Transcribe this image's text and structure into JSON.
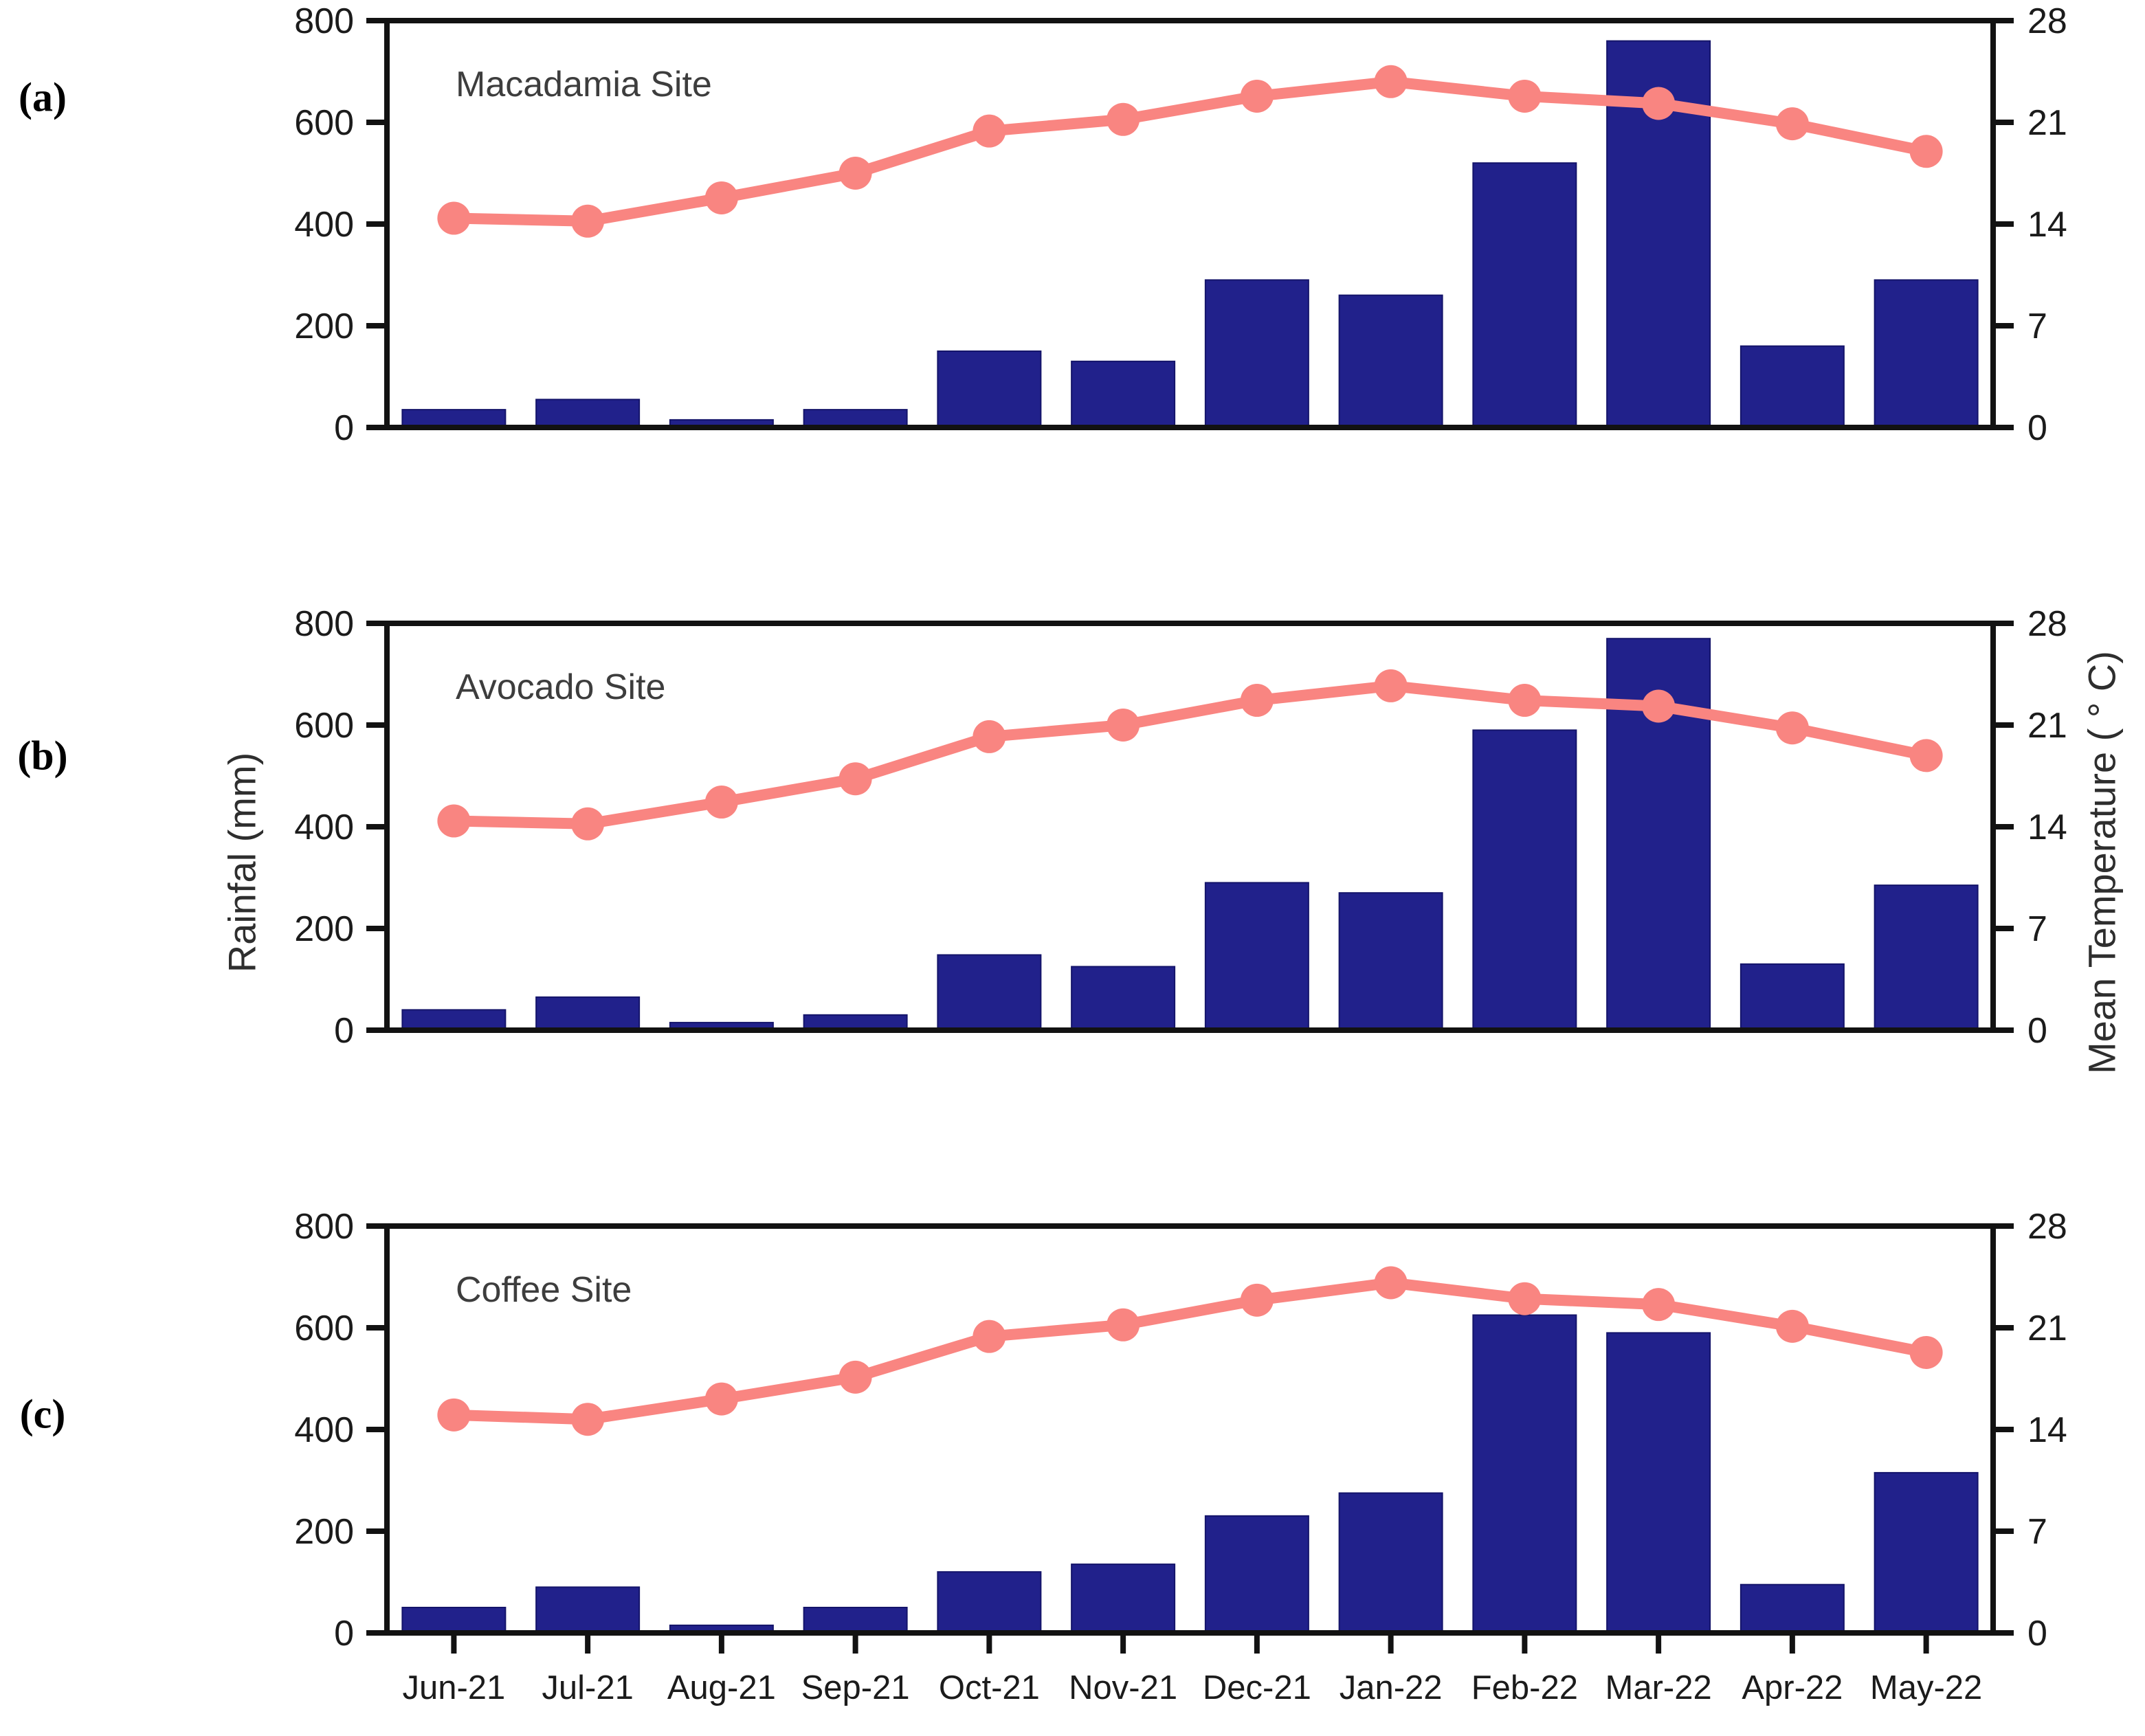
{
  "figure": {
    "left_axis_title": "Rainfal (mm)",
    "right_axis_title": "Mean Temperature ( ° C)",
    "left_axis_ticks": [
      0,
      200,
      400,
      600,
      800
    ],
    "right_axis_ticks": [
      0,
      7,
      14,
      21,
      28
    ],
    "colors": {
      "bar": "#21218B",
      "bar_edge": "#14146a",
      "line": "#F98581",
      "axis": "#121212",
      "site_label": "#3d3d3d"
    }
  },
  "chart_data": [
    {
      "type": "bar+line",
      "panel_label": "(a)",
      "title": "Macadamia Site",
      "categories": [
        "Jun-21",
        "Jul-21",
        "Aug-21",
        "Sep-21",
        "Oct-21",
        "Nov-21",
        "Dec-21",
        "Jan-22",
        "Feb-22",
        "Mar-22",
        "Apr-22",
        "May-22"
      ],
      "ylim_left": [
        0,
        800
      ],
      "ylim_right": [
        0,
        28
      ],
      "legend_position": "none",
      "series": [
        {
          "name": "Rainfall",
          "type": "bar",
          "axis": "left",
          "unit": "mm",
          "values": [
            35,
            55,
            15,
            35,
            150,
            130,
            290,
            260,
            520,
            760,
            160,
            290
          ]
        },
        {
          "name": "Mean Temperature",
          "type": "line",
          "axis": "right",
          "unit": "°C",
          "values": [
            14.4,
            14.2,
            15.8,
            17.5,
            20.4,
            21.2,
            22.8,
            23.8,
            22.8,
            22.3,
            20.9,
            19.0
          ]
        }
      ]
    },
    {
      "type": "bar+line",
      "panel_label": "(b)",
      "title": "Avocado Site",
      "categories": [
        "Jun-21",
        "Jul-21",
        "Aug-21",
        "Sep-21",
        "Oct-21",
        "Nov-21",
        "Dec-21",
        "Jan-22",
        "Feb-22",
        "Mar-22",
        "Apr-22",
        "May-22"
      ],
      "ylim_left": [
        0,
        800
      ],
      "ylim_right": [
        0,
        28
      ],
      "legend_position": "none",
      "series": [
        {
          "name": "Rainfall",
          "type": "bar",
          "axis": "left",
          "unit": "mm",
          "values": [
            40,
            65,
            15,
            30,
            148,
            125,
            290,
            270,
            590,
            770,
            130,
            285
          ]
        },
        {
          "name": "Mean Temperature",
          "type": "line",
          "axis": "right",
          "unit": "°C",
          "values": [
            14.4,
            14.2,
            15.7,
            17.3,
            20.2,
            21.0,
            22.7,
            23.7,
            22.7,
            22.3,
            20.8,
            18.9
          ]
        }
      ]
    },
    {
      "type": "bar+line",
      "panel_label": "(c)",
      "title": "Coffee Site",
      "categories": [
        "Jun-21",
        "Jul-21",
        "Aug-21",
        "Sep-21",
        "Oct-21",
        "Nov-21",
        "Dec-21",
        "Jan-22",
        "Feb-22",
        "Mar-22",
        "Apr-22",
        "May-22"
      ],
      "ylim_left": [
        0,
        800
      ],
      "ylim_right": [
        0,
        28
      ],
      "legend_position": "none",
      "series": [
        {
          "name": "Rainfall",
          "type": "bar",
          "axis": "left",
          "unit": "mm",
          "values": [
            50,
            90,
            15,
            50,
            120,
            135,
            230,
            275,
            625,
            590,
            95,
            315
          ]
        },
        {
          "name": "Mean Temperature",
          "type": "line",
          "axis": "right",
          "unit": "°C",
          "values": [
            15.0,
            14.7,
            16.1,
            17.6,
            20.4,
            21.2,
            22.9,
            24.1,
            23.0,
            22.6,
            21.1,
            19.3
          ]
        }
      ]
    }
  ]
}
